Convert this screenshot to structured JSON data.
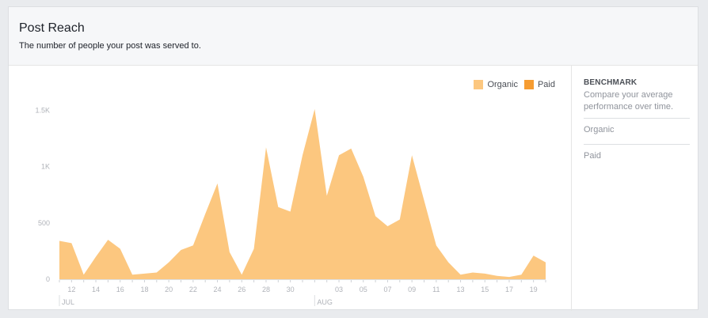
{
  "header": {
    "title": "Post Reach",
    "subtitle": "The number of people your post was served to."
  },
  "benchmark": {
    "title": "BENCHMARK",
    "description": "Compare your average performance over time.",
    "rows": [
      "Organic",
      "Paid"
    ]
  },
  "colors": {
    "organic": "#fcc77f",
    "paid": "#f69c31"
  },
  "chart_data": {
    "type": "area",
    "legend_position": "top-right",
    "series": [
      {
        "name": "Organic",
        "values": [
          340,
          320,
          40,
          200,
          350,
          270,
          40,
          50,
          60,
          150,
          260,
          300,
          580,
          850,
          240,
          40,
          270,
          1170,
          640,
          600,
          1100,
          1510,
          740,
          1100,
          1160,
          910,
          560,
          470,
          530,
          1100,
          700,
          300,
          150,
          40,
          60,
          50,
          30,
          20,
          40,
          210,
          150
        ]
      },
      {
        "name": "Paid",
        "values": [
          0,
          0,
          0,
          0,
          0,
          0,
          0,
          0,
          0,
          0,
          0,
          0,
          0,
          0,
          0,
          0,
          0,
          0,
          0,
          0,
          0,
          0,
          0,
          0,
          0,
          0,
          0,
          0,
          0,
          0,
          0,
          0,
          0,
          0,
          0,
          0,
          0,
          0,
          0,
          0,
          0
        ]
      }
    ],
    "ylim": [
      0,
      1600
    ],
    "y_ticks": [
      {
        "value": 0,
        "label": "0"
      },
      {
        "value": 500,
        "label": "500"
      },
      {
        "value": 1000,
        "label": "1K"
      },
      {
        "value": 1500,
        "label": "1.5K"
      }
    ],
    "x_tick_labels": [
      {
        "index": 1,
        "label": "12"
      },
      {
        "index": 3,
        "label": "14"
      },
      {
        "index": 5,
        "label": "16"
      },
      {
        "index": 7,
        "label": "18"
      },
      {
        "index": 9,
        "label": "20"
      },
      {
        "index": 11,
        "label": "22"
      },
      {
        "index": 13,
        "label": "24"
      },
      {
        "index": 15,
        "label": "26"
      },
      {
        "index": 17,
        "label": "28"
      },
      {
        "index": 19,
        "label": "30"
      },
      {
        "index": 23,
        "label": "03"
      },
      {
        "index": 25,
        "label": "05"
      },
      {
        "index": 27,
        "label": "07"
      },
      {
        "index": 29,
        "label": "09"
      },
      {
        "index": 31,
        "label": "11"
      },
      {
        "index": 33,
        "label": "13"
      },
      {
        "index": 35,
        "label": "15"
      },
      {
        "index": 37,
        "label": "17"
      },
      {
        "index": 39,
        "label": "19"
      }
    ],
    "month_labels": [
      {
        "index": 0,
        "label": "JUL"
      },
      {
        "index": 21,
        "label": "AUG"
      }
    ],
    "grid": false
  }
}
